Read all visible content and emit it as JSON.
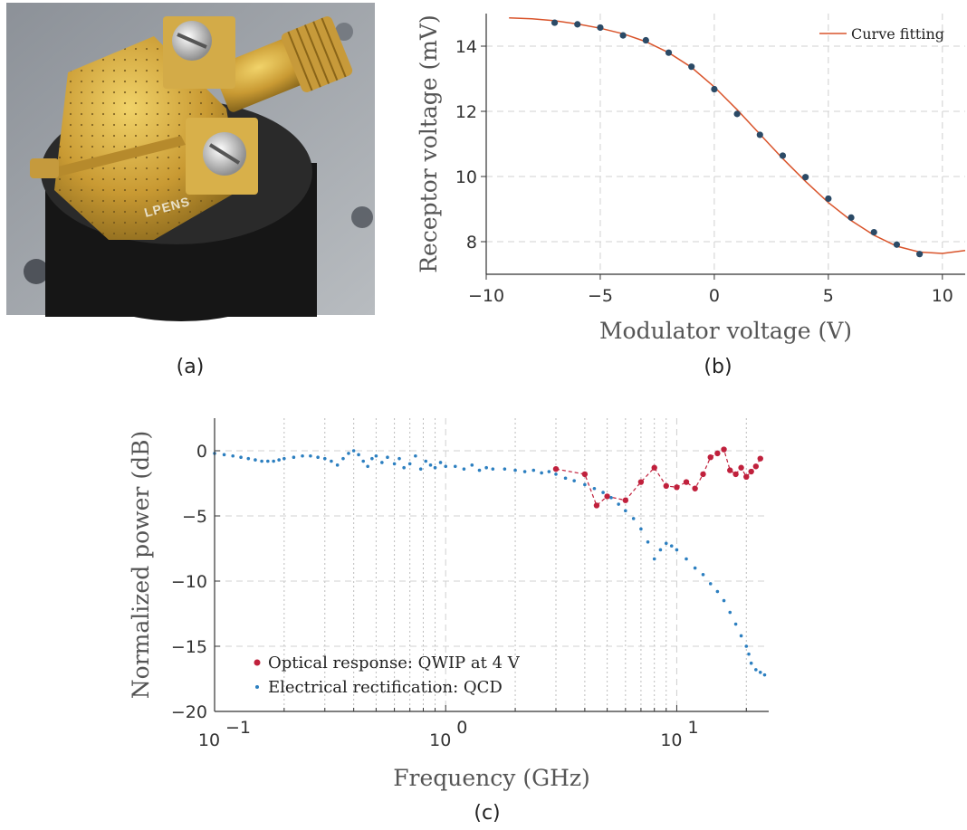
{
  "panels": {
    "a_label": "(a)",
    "b_label": "(b)",
    "c_label": "(c)",
    "photo_text": "LPENS"
  },
  "chart_data": [
    {
      "type": "scatter",
      "panel": "(b)",
      "xlabel": "Modulator voltage (V)",
      "ylabel": "Receptor voltage (mV)",
      "xlim": [
        -10,
        11
      ],
      "ylim": [
        7,
        15
      ],
      "xticks": [
        -10,
        -5,
        0,
        5,
        10
      ],
      "xtick_labels": [
        "−10",
        "−5",
        "0",
        "5",
        "10"
      ],
      "yticks": [
        8,
        10,
        12,
        14
      ],
      "ytick_labels": [
        "8",
        "10",
        "12",
        "14"
      ],
      "grid": true,
      "legend": "top-right",
      "series": [
        {
          "kind": "points",
          "color": "#2b4a66",
          "x": [
            -7,
            -6,
            -5,
            -4,
            -3,
            -2,
            -1,
            0,
            1,
            2,
            3,
            4,
            5,
            6,
            7,
            8,
            9
          ],
          "y": [
            14.72,
            14.67,
            14.57,
            14.33,
            14.18,
            13.8,
            13.37,
            12.68,
            11.92,
            11.28,
            10.64,
            9.98,
            9.32,
            8.74,
            8.29,
            7.91,
            7.62
          ]
        },
        {
          "kind": "line",
          "name": "Curve fitting",
          "color": "#d9542b",
          "x": [
            -9,
            -8,
            -7,
            -6,
            -5,
            -4,
            -3,
            -2,
            -1,
            0,
            1,
            2,
            3,
            4,
            5,
            6,
            7,
            8,
            9,
            10,
            11
          ],
          "y": [
            14.87,
            14.84,
            14.78,
            14.68,
            14.55,
            14.38,
            14.14,
            13.8,
            13.35,
            12.75,
            12.05,
            11.3,
            10.55,
            9.85,
            9.2,
            8.65,
            8.2,
            7.86,
            7.68,
            7.64,
            7.73
          ]
        }
      ]
    },
    {
      "type": "scatter",
      "panel": "(c)",
      "xlabel": "Frequency (GHz)",
      "ylabel": "Normalized power (dB)",
      "xscale": "log",
      "xlim": [
        0.1,
        25
      ],
      "ylim": [
        -20,
        2.5
      ],
      "xtick_labels": [
        {
          "base": "10",
          "exp": "−1"
        },
        {
          "base": "10",
          "exp": "0"
        },
        {
          "base": "10",
          "exp": "1"
        }
      ],
      "yticks": [
        -20,
        -15,
        -10,
        -5,
        0
      ],
      "ytick_labels": [
        "−20",
        "−15",
        "−10",
        "−5",
        "0"
      ],
      "grid": true,
      "legend": "bottom-left",
      "series": [
        {
          "name": "Optical response: QWIP at 4 V",
          "color": "#c0203c",
          "x": [
            3,
            4,
            4.5,
            5,
            6,
            7,
            8,
            9,
            10,
            11,
            12,
            13,
            14,
            15,
            16,
            17,
            18,
            19,
            20,
            21,
            22,
            23
          ],
          "y": [
            -1.4,
            -1.8,
            -4.2,
            -3.5,
            -3.8,
            -2.4,
            -1.3,
            -2.7,
            -2.8,
            -2.4,
            -2.9,
            -1.8,
            -0.5,
            -0.2,
            0.1,
            -1.5,
            -1.8,
            -1.3,
            -2.0,
            -1.6,
            -1.2,
            -0.6
          ]
        },
        {
          "name": "Electrical rectification: QCD",
          "color": "#2c7fc0",
          "x": [
            0.1,
            0.11,
            0.12,
            0.13,
            0.14,
            0.15,
            0.16,
            0.17,
            0.18,
            0.19,
            0.2,
            0.22,
            0.24,
            0.26,
            0.28,
            0.3,
            0.32,
            0.34,
            0.36,
            0.38,
            0.4,
            0.42,
            0.44,
            0.46,
            0.48,
            0.5,
            0.53,
            0.56,
            0.6,
            0.63,
            0.66,
            0.7,
            0.74,
            0.78,
            0.82,
            0.86,
            0.9,
            0.95,
            1.0,
            1.1,
            1.2,
            1.3,
            1.4,
            1.5,
            1.6,
            1.8,
            2.0,
            2.2,
            2.4,
            2.6,
            2.8,
            3.0,
            3.3,
            3.6,
            4.0,
            4.4,
            4.8,
            5.2,
            5.6,
            6.0,
            6.5,
            7.0,
            7.5,
            8.0,
            8.5,
            9.0,
            9.5,
            10,
            11,
            12,
            13,
            14,
            15,
            16,
            17,
            18,
            19,
            20,
            20.5,
            21,
            22,
            23,
            24
          ],
          "y": [
            -0.2,
            -0.3,
            -0.4,
            -0.5,
            -0.6,
            -0.7,
            -0.8,
            -0.8,
            -0.8,
            -0.7,
            -0.6,
            -0.5,
            -0.4,
            -0.4,
            -0.5,
            -0.6,
            -0.8,
            -1.1,
            -0.6,
            -0.2,
            0.0,
            -0.3,
            -0.8,
            -1.2,
            -0.6,
            -0.4,
            -0.9,
            -0.5,
            -1.0,
            -0.6,
            -1.3,
            -1.0,
            -0.4,
            -1.4,
            -0.8,
            -1.1,
            -1.3,
            -0.9,
            -1.2,
            -1.2,
            -1.4,
            -1.1,
            -1.5,
            -1.3,
            -1.4,
            -1.4,
            -1.5,
            -1.6,
            -1.5,
            -1.7,
            -1.6,
            -1.8,
            -2.1,
            -2.3,
            -2.6,
            -2.9,
            -3.2,
            -3.6,
            -4.1,
            -4.6,
            -5.2,
            -6.0,
            -7.0,
            -8.3,
            -7.6,
            -7.1,
            -7.3,
            -7.6,
            -8.3,
            -9.0,
            -9.5,
            -10.2,
            -10.8,
            -11.5,
            -12.4,
            -13.3,
            -14.2,
            -15.0,
            -15.6,
            -16.3,
            -16.8,
            -17.0,
            -17.2
          ]
        }
      ]
    }
  ]
}
